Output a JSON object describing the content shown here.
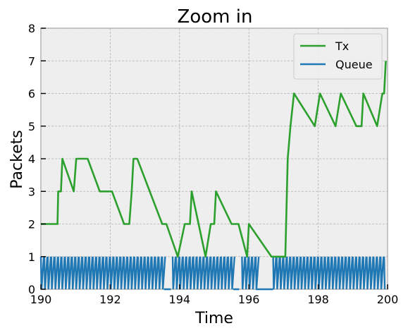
{
  "chart_data": {
    "type": "line",
    "title": "Zoom in",
    "xlabel": "Time",
    "ylabel": "Packets",
    "xlim": [
      190,
      200
    ],
    "ylim": [
      0,
      8
    ],
    "xticks": [
      190,
      192,
      194,
      196,
      198,
      200
    ],
    "yticks": [
      0,
      1,
      2,
      3,
      4,
      5,
      6,
      7,
      8
    ],
    "grid": true,
    "legend": "top-right",
    "series": [
      {
        "name": "Tx",
        "color": "#2ca02c",
        "x": [
          190.0,
          190.48,
          190.5,
          190.58,
          190.62,
          190.95,
          191.02,
          191.35,
          191.7,
          192.05,
          192.4,
          192.55,
          192.62,
          192.67,
          192.78,
          193.5,
          193.62,
          193.95,
          194.15,
          194.3,
          194.35,
          194.75,
          194.9,
          195.0,
          195.05,
          195.5,
          195.7,
          195.95,
          196.0,
          196.65,
          197.05,
          197.12,
          197.2,
          197.3,
          197.9,
          198.05,
          198.5,
          198.65,
          199.1,
          199.25,
          199.3,
          199.7,
          199.85,
          199.9,
          199.95
        ],
        "values": [
          2,
          2,
          3,
          3,
          4,
          3,
          4,
          4,
          3,
          3,
          2,
          2,
          3,
          4,
          4,
          2,
          2,
          1,
          2,
          2,
          3,
          1,
          2,
          2,
          3,
          2,
          2,
          1,
          2,
          1,
          1,
          4,
          5,
          6,
          5,
          6,
          5,
          6,
          5,
          5,
          6,
          5,
          6,
          6,
          7
        ]
      },
      {
        "name": "Queue",
        "color": "#1f77b4",
        "x_start": 190,
        "x_end": 199.9,
        "period": 0.1,
        "pattern": "sawtooth",
        "min": 0,
        "max": 1,
        "gaps": [
          [
            193.55,
            193.75
          ],
          [
            195.55,
            195.72
          ],
          [
            196.2,
            196.7
          ]
        ]
      }
    ]
  }
}
